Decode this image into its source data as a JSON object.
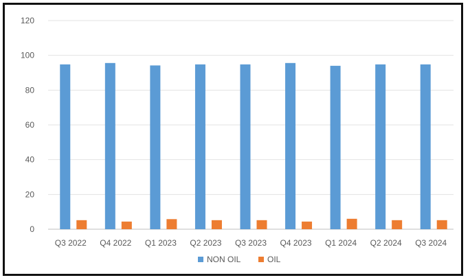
{
  "chart_data": {
    "type": "bar",
    "title": "",
    "xlabel": "",
    "ylabel": "",
    "categories": [
      "Q3 2022",
      "Q4 2022",
      "Q1 2023",
      "Q2 2023",
      "Q3 2023",
      "Q4 2023",
      "Q1 2024",
      "Q2 2024",
      "Q3 2024"
    ],
    "series": [
      {
        "name": "NON OIL",
        "color": "#5B9BD5",
        "values": [
          94.8,
          95.6,
          94.2,
          94.8,
          94.8,
          95.6,
          94.0,
          94.8,
          94.8
        ]
      },
      {
        "name": "OIL",
        "color": "#ED7D31",
        "values": [
          5.2,
          4.4,
          5.8,
          5.2,
          5.2,
          4.4,
          6.0,
          5.2,
          5.2
        ]
      }
    ],
    "ylim": [
      0,
      120
    ],
    "yticks": [
      "0",
      "20",
      "40",
      "60",
      "80",
      "100",
      "120"
    ],
    "grid": true,
    "legend": "bottom"
  }
}
